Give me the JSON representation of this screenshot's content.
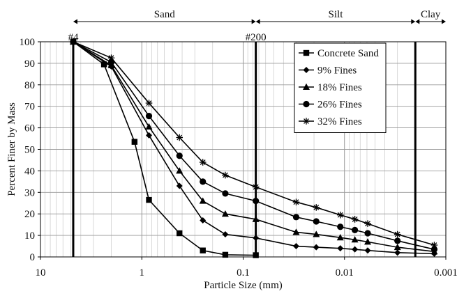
{
  "chart_data": {
    "type": "line",
    "xlabel": "Particle Size (mm)",
    "ylabel": "Percent Finer by Mass",
    "x_scale": "log",
    "x_reversed": true,
    "xlim": [
      10,
      0.001
    ],
    "ylim": [
      0,
      100
    ],
    "x_ticks": [
      10,
      1,
      0.1,
      0.01,
      0.001
    ],
    "x_tick_labels": [
      "10",
      "1",
      "0.1",
      "0.01",
      "0.001"
    ],
    "y_ticks": [
      0,
      10,
      20,
      30,
      40,
      50,
      60,
      70,
      80,
      90,
      100
    ],
    "grid": true,
    "legend_position": "top-right",
    "soil_bands": [
      {
        "label": "Sand",
        "from": 4.75,
        "to": 0.075
      },
      {
        "label": "Silt",
        "from": 0.075,
        "to": 0.002
      },
      {
        "label": "Clay",
        "from": 0.002,
        "to": 0.001
      }
    ],
    "sieve_markers": [
      {
        "label": "#4",
        "x": 4.75
      },
      {
        "label": "#200",
        "x": 0.075
      },
      {
        "label": "",
        "x": 0.002
      }
    ],
    "series": [
      {
        "name": "Concrete Sand",
        "marker": "square",
        "x": [
          4.75,
          2.36,
          1.18,
          0.85,
          0.425,
          0.25,
          0.15,
          0.075
        ],
        "y": [
          100,
          89.5,
          53.5,
          26.5,
          11,
          3,
          1,
          0.8
        ]
      },
      {
        "name": "9% Fines",
        "marker": "diamond",
        "x": [
          4.75,
          2.0,
          0.85,
          0.425,
          0.25,
          0.15,
          0.075,
          0.03,
          0.019,
          0.011,
          0.0079,
          0.0059,
          0.003,
          0.0013
        ],
        "y": [
          100,
          88.5,
          56.5,
          33,
          17,
          10.5,
          8.8,
          5,
          4.5,
          4,
          3.5,
          3,
          2,
          1.5
        ]
      },
      {
        "name": "18% Fines",
        "marker": "triangle",
        "x": [
          4.75,
          2.0,
          0.85,
          0.425,
          0.25,
          0.15,
          0.075,
          0.03,
          0.019,
          0.011,
          0.0079,
          0.0059,
          0.003,
          0.0013
        ],
        "y": [
          100,
          89,
          60.5,
          40,
          26,
          20,
          17.5,
          11.5,
          10.5,
          9,
          8,
          7,
          4.5,
          2.5
        ]
      },
      {
        "name": "26% Fines",
        "marker": "circle",
        "x": [
          4.75,
          2.0,
          0.85,
          0.425,
          0.25,
          0.15,
          0.075,
          0.03,
          0.019,
          0.011,
          0.0079,
          0.0059,
          0.003,
          0.0013
        ],
        "y": [
          100,
          90.5,
          65.5,
          47,
          35,
          29.5,
          26,
          18.5,
          16.5,
          14,
          12.5,
          11,
          7.5,
          3.5
        ]
      },
      {
        "name": "32% Fines",
        "marker": "star",
        "x": [
          4.75,
          2.0,
          0.85,
          0.425,
          0.25,
          0.15,
          0.075,
          0.03,
          0.019,
          0.011,
          0.0079,
          0.0059,
          0.003,
          0.0013
        ],
        "y": [
          100,
          92.5,
          71.5,
          55.5,
          44,
          38,
          32.5,
          25.5,
          23,
          19.5,
          17.5,
          15.5,
          10.5,
          5.5
        ]
      }
    ]
  }
}
